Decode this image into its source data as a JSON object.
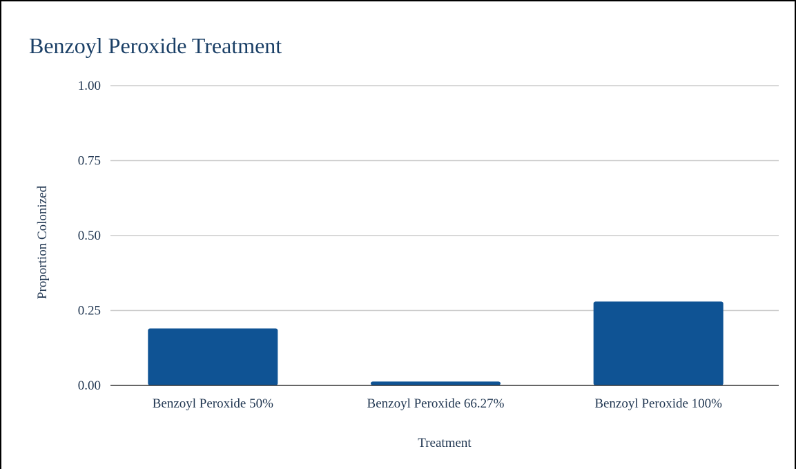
{
  "chart_data": {
    "type": "bar",
    "title": "Benzoyl Peroxide Treatment",
    "xlabel": "Treatment",
    "ylabel": "Proportion Colonized",
    "categories": [
      "Benzoyl Peroxide 50%",
      "Benzoyl Peroxide 66.27%",
      "Benzoyl Peroxide 100%"
    ],
    "values": [
      0.19,
      0.013,
      0.28
    ],
    "ylim": [
      0,
      1
    ],
    "yticks": [
      "0.00",
      "0.25",
      "0.50",
      "0.75",
      "1.00"
    ],
    "grid": true,
    "bar_color": "#0f5394",
    "gridline_color": "#cccccc"
  }
}
